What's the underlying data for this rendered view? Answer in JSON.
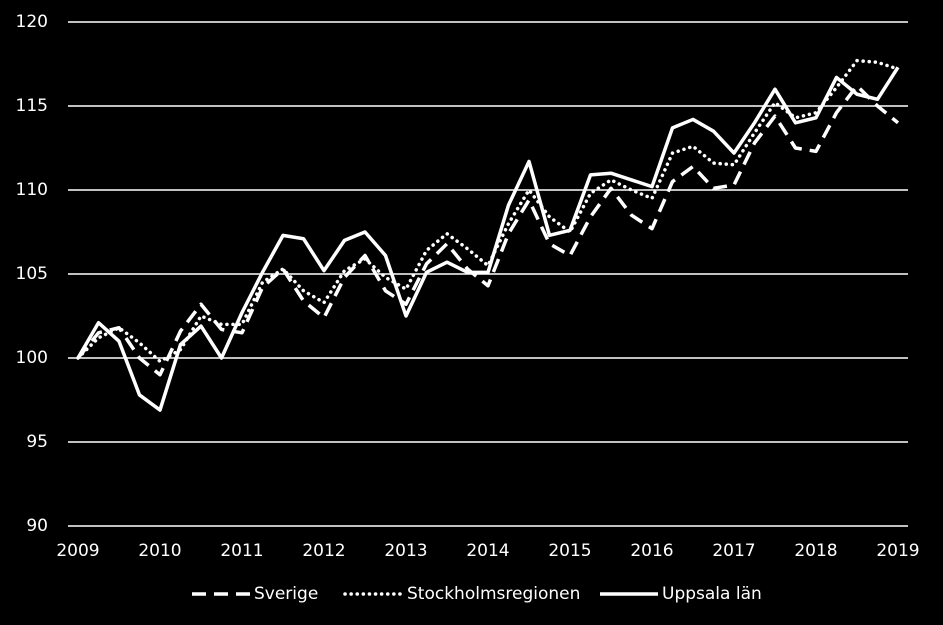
{
  "chart_data": {
    "type": "line",
    "categories": [
      "2009",
      null,
      null,
      null,
      "2010",
      null,
      null,
      null,
      "2011",
      null,
      null,
      null,
      "2012",
      null,
      null,
      null,
      "2013",
      null,
      null,
      null,
      "2014",
      null,
      null,
      null,
      "2015",
      null,
      null,
      null,
      "2016",
      null,
      null,
      null,
      "2017",
      null,
      null,
      null,
      "2018",
      null,
      null,
      null,
      "2019"
    ],
    "series": [
      {
        "name": "Sverige",
        "color": "#ffffff",
        "dash": "dashed",
        "values": [
          100,
          101.5,
          101.8,
          100,
          99.0,
          101.6,
          103.2,
          101.7,
          101.5,
          104.2,
          105.3,
          103.4,
          102.4,
          104.8,
          106.1,
          104.0,
          103.2,
          105.6,
          106.8,
          105.3,
          104.3,
          107.4,
          109.4,
          106.8,
          106.1,
          108.4,
          110.1,
          108.5,
          107.7,
          110.5,
          111.4,
          110.1,
          110.3,
          112.8,
          114.4,
          112.5,
          112.3,
          114.6,
          116.2,
          115.0,
          114.0
        ]
      },
      {
        "name": "Stockholmsregionen",
        "color": "#ffffff",
        "dash": "dotted",
        "values": [
          100,
          101.2,
          101.8,
          100.9,
          99.8,
          100.5,
          102.5,
          102.0,
          102.0,
          104.5,
          105.3,
          104.0,
          103.3,
          105.2,
          105.9,
          104.8,
          104.1,
          106.4,
          107.4,
          106.5,
          105.5,
          108.0,
          110.0,
          108.4,
          107.5,
          109.8,
          110.6,
          110.0,
          109.5,
          112.2,
          112.6,
          111.6,
          111.5,
          113.4,
          115.2,
          114.3,
          114.6,
          116.1,
          117.7,
          117.6,
          117.2
        ]
      },
      {
        "name": "Uppsala län",
        "color": "#ffffff",
        "dash": "solid",
        "values": [
          100,
          102.1,
          101.0,
          97.8,
          96.9,
          100.8,
          101.9,
          100,
          102.7,
          105.1,
          107.3,
          107.1,
          105.2,
          107.0,
          107.5,
          106.1,
          102.5,
          105.1,
          105.7,
          105.1,
          105.1,
          109.1,
          111.7,
          107.3,
          107.6,
          110.9,
          111.0,
          110.6,
          110.2,
          113.7,
          114.2,
          113.5,
          112.2,
          114.0,
          116.0,
          114.0,
          114.3,
          116.7,
          115.7,
          115.4,
          117.3
        ]
      }
    ],
    "ylim": [
      90,
      120
    ],
    "yticks": [
      90,
      95,
      100,
      105,
      110,
      115,
      120
    ],
    "grid": true,
    "legend": "bottom"
  }
}
